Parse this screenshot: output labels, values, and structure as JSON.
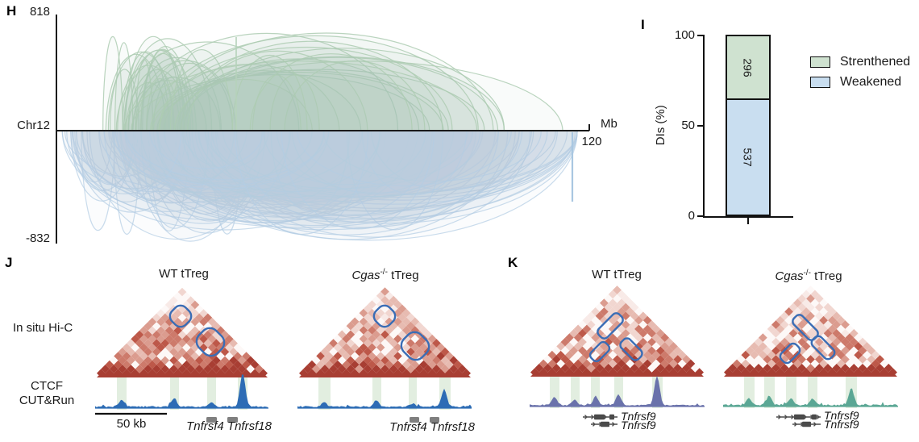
{
  "colors": {
    "axis": "#1a1a1a",
    "arc_up": "#aecdb3",
    "arc_down": "#b3cde4",
    "marker_up": "#b5d2ba",
    "marker_down": "#a9c7e1",
    "hic_dark": "#a83e33",
    "hic_palette": [
      "#fdf8f7",
      "#f8eae7",
      "#f1d6d0",
      "#e7bbb1",
      "#db9c8f",
      "#cd7a6b",
      "#bd5849",
      "#a83e33"
    ],
    "loop_stroke": "#3a6db5",
    "band_green": "#cfe3cb",
    "track_j": "#2d6cb5",
    "track_k_wt": "#6a72ab",
    "track_k_ko": "#5ba795",
    "gene_gray": "#7f7f7f",
    "gene_dark": "#4a4a4a",
    "bar_green": "#cfe2d0",
    "bar_blue": "#c9def0"
  },
  "figure": {
    "panel_h": {
      "label": "H",
      "seed": 11,
      "y_axis": {
        "top": "818",
        "bottom": "-832"
      },
      "chromosome": "Chr12",
      "x_unit": "Mb",
      "x_max": "120"
    },
    "panel_i": {
      "label": "I",
      "ylabel": "DIs (%)",
      "yticks": [
        "100",
        "50",
        "0"
      ],
      "segments": [
        {
          "label": "Strenthened",
          "count": "296"
        },
        {
          "label": "Weakened",
          "count": "537"
        }
      ]
    },
    "panel_j": {
      "label": "J",
      "row_label_hic": "In situ Hi-C",
      "row_label_track_1": "CTCF",
      "row_label_track_2": "CUT&Run",
      "scalebar_label": "50 kb",
      "columns": [
        {
          "title": {
            "plain": "WT tTreg"
          },
          "genes_label": "Tnfrsf4 Tnfrsf18"
        },
        {
          "title": {
            "gene": "Cgas",
            "sup": "-/-",
            "rest": " tTreg"
          },
          "genes_label": "Tnfrsf4 Tnfrsf18"
        }
      ]
    },
    "panel_k": {
      "label": "K",
      "columns": [
        {
          "title": {
            "plain": "WT tTreg"
          },
          "gene_labels": [
            "Tnfrsf9",
            "Tnfrsf9"
          ]
        },
        {
          "title": {
            "gene": "Cgas",
            "sup": "-/-",
            "rest": " tTreg"
          },
          "gene_labels": [
            "Tnfrsf9",
            "Tnfrsf9"
          ]
        }
      ]
    }
  },
  "chart_data": [
    {
      "type": "other",
      "subtype": "arc-diagram",
      "title": "Differential chromatin interactions along Chr12",
      "x_axis": {
        "label": "Mb",
        "min": 0,
        "max": 120,
        "chromosome": "Chr12"
      },
      "y_axis": {
        "top_value": 818,
        "bottom_value": -832
      },
      "series": [
        {
          "name": "strengthened interactions",
          "direction": "up",
          "color": "#aecdb3"
        },
        {
          "name": "weakened interactions",
          "direction": "down",
          "color": "#b3cde4"
        }
      ]
    },
    {
      "type": "bar",
      "stacked": true,
      "categories": [
        ""
      ],
      "series": [
        {
          "name": "Strenthened",
          "count": 296,
          "percent": 35.5,
          "color": "#cfe2d0"
        },
        {
          "name": "Weakened",
          "count": 537,
          "percent": 64.5,
          "color": "#c9def0"
        }
      ],
      "ylabel": "DIs (%)",
      "ylim": [
        0,
        100
      ],
      "yticks": [
        0,
        50,
        100
      ],
      "legend_position": "right",
      "legend": [
        "Strenthened",
        "Weakened"
      ]
    }
  ]
}
